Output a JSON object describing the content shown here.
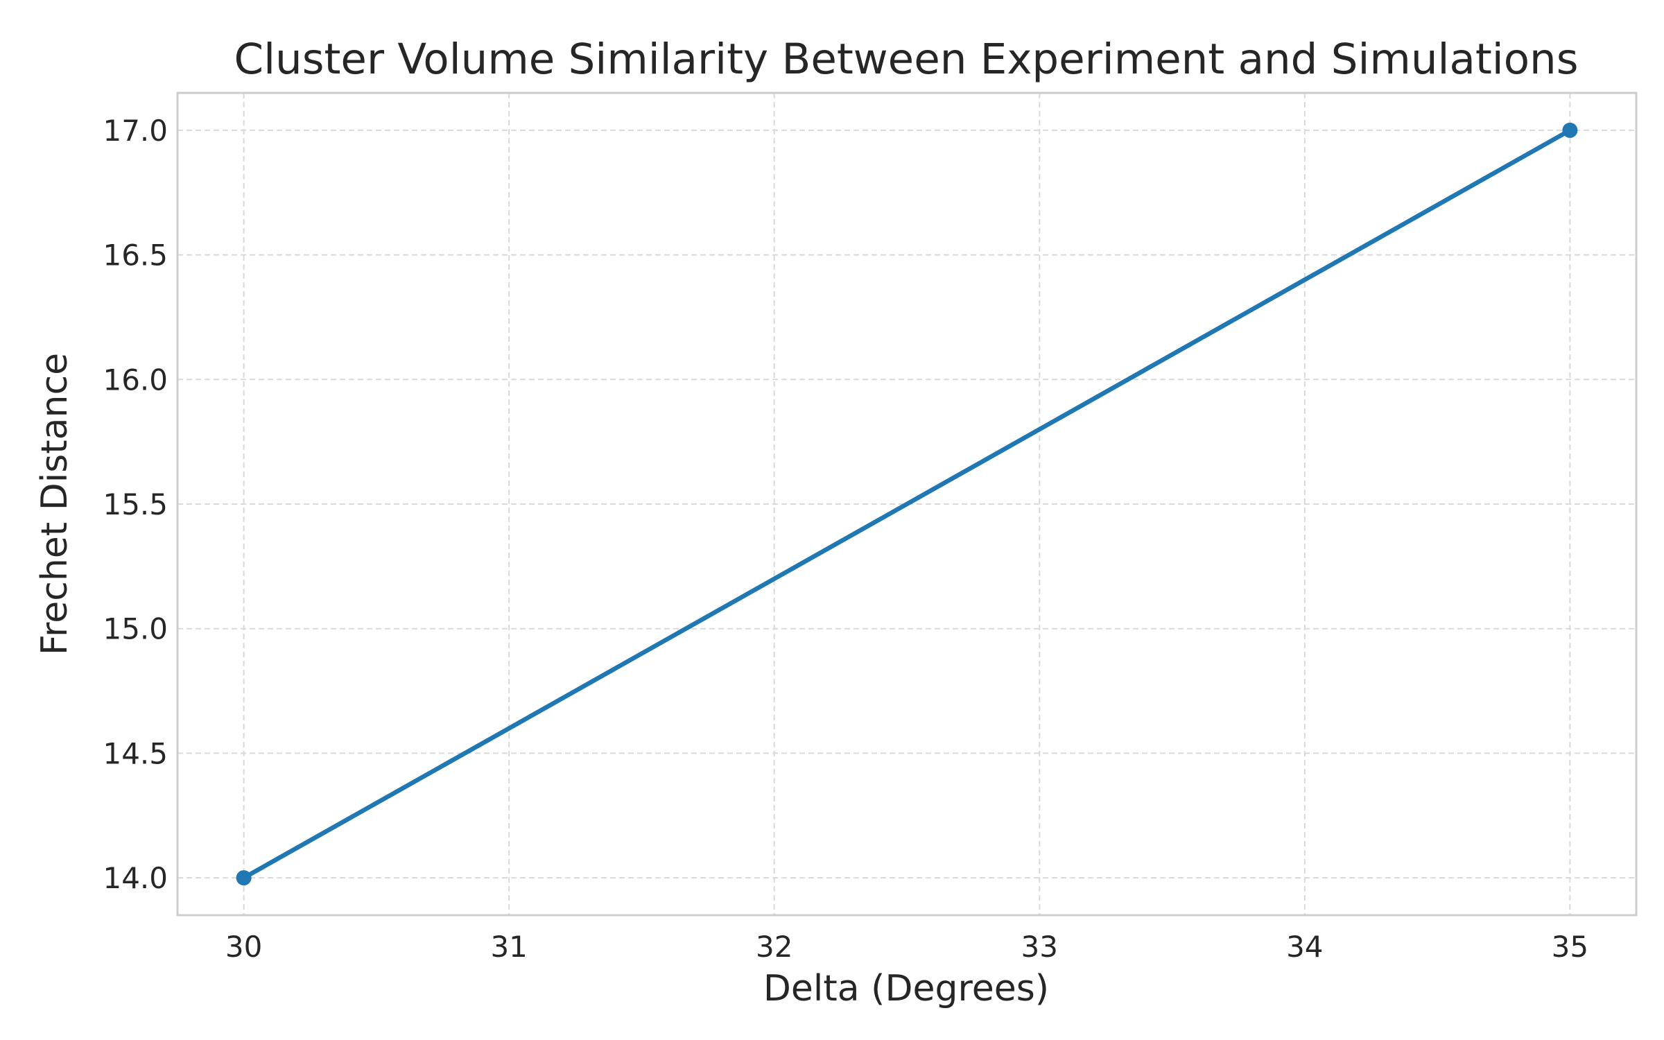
{
  "chart_data": {
    "type": "line",
    "title": "Cluster Volume Similarity Between Experiment and Simulations",
    "xlabel": "Delta (Degrees)",
    "ylabel": "Frechet Distance",
    "xlim": [
      29.75,
      35.25
    ],
    "ylim": [
      13.85,
      17.15
    ],
    "x_ticks": [
      30,
      31,
      32,
      33,
      34,
      35
    ],
    "x_tick_labels": [
      "30",
      "31",
      "32",
      "33",
      "34",
      "35"
    ],
    "y_ticks": [
      14.0,
      14.5,
      15.0,
      15.5,
      16.0,
      16.5,
      17.0
    ],
    "y_tick_labels": [
      "14.0",
      "14.5",
      "15.0",
      "15.5",
      "16.0",
      "16.5",
      "17.0"
    ],
    "grid": true,
    "legend": "none",
    "series": [
      {
        "color": "#1f77b4",
        "marker": "circle",
        "x": [
          30,
          35
        ],
        "y": [
          14.0,
          17.0
        ]
      }
    ]
  }
}
